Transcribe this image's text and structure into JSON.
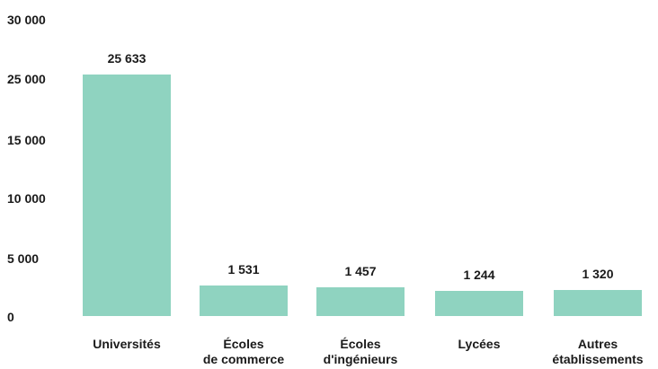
{
  "chart_data": {
    "type": "bar",
    "title": "",
    "xlabel": "",
    "ylabel": "",
    "categories": [
      "Universités",
      "Écoles\nde commerce",
      "Écoles\nd'ingénieurs",
      "Lycées",
      "Autres\nétablissements"
    ],
    "values": [
      25633,
      1531,
      1457,
      1244,
      1320
    ],
    "value_labels": [
      "25 633",
      "1 531",
      "1 457",
      "1 244",
      "1 320"
    ],
    "ytick_labels": [
      "30 000",
      "25 000",
      "15 000",
      "10 000",
      "5 000",
      "0"
    ],
    "grid": false,
    "legend": "none",
    "bar_color": "#8fd3c0"
  }
}
